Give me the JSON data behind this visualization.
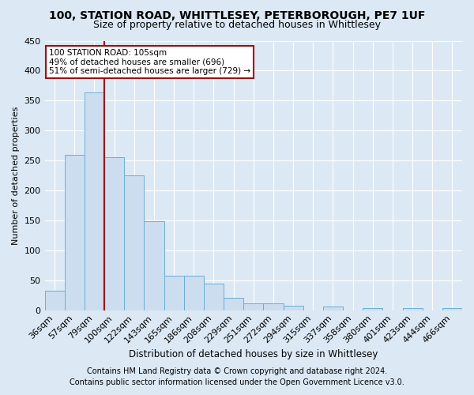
{
  "title": "100, STATION ROAD, WHITTLESEY, PETERBOROUGH, PE7 1UF",
  "subtitle": "Size of property relative to detached houses in Whittlesey",
  "xlabel": "Distribution of detached houses by size in Whittlesey",
  "ylabel": "Number of detached properties",
  "footnote1": "Contains HM Land Registry data © Crown copyright and database right 2024.",
  "footnote2": "Contains public sector information licensed under the Open Government Licence v3.0.",
  "bar_labels": [
    "36sqm",
    "57sqm",
    "79sqm",
    "100sqm",
    "122sqm",
    "143sqm",
    "165sqm",
    "186sqm",
    "208sqm",
    "229sqm",
    "251sqm",
    "272sqm",
    "294sqm",
    "315sqm",
    "337sqm",
    "358sqm",
    "380sqm",
    "401sqm",
    "423sqm",
    "444sqm",
    "466sqm"
  ],
  "bar_values": [
    32,
    259,
    363,
    256,
    225,
    148,
    57,
    57,
    44,
    20,
    11,
    11,
    8,
    0,
    6,
    0,
    4,
    0,
    4,
    0,
    4
  ],
  "bar_color": "#ccddf0",
  "bar_edgecolor": "#6aaed6",
  "annotation_line1": "100 STATION ROAD: 105sqm",
  "annotation_line2": "49% of detached houses are smaller (696)",
  "annotation_line3": "51% of semi-detached houses are larger (729) →",
  "annotation_box_facecolor": "#ffffff",
  "annotation_box_edgecolor": "#aa0000",
  "vline_color": "#aa0000",
  "vline_index": 3,
  "bg_color": "#dce9f5",
  "plot_bg_color": "#dce9f5",
  "ylim": [
    0,
    450
  ],
  "yticks": [
    0,
    50,
    100,
    150,
    200,
    250,
    300,
    350,
    400,
    450
  ],
  "title_fontsize": 10,
  "subtitle_fontsize": 9,
  "xlabel_fontsize": 8.5,
  "ylabel_fontsize": 8,
  "tick_fontsize": 8,
  "ann_fontsize": 7.5,
  "footnote_fontsize": 7
}
